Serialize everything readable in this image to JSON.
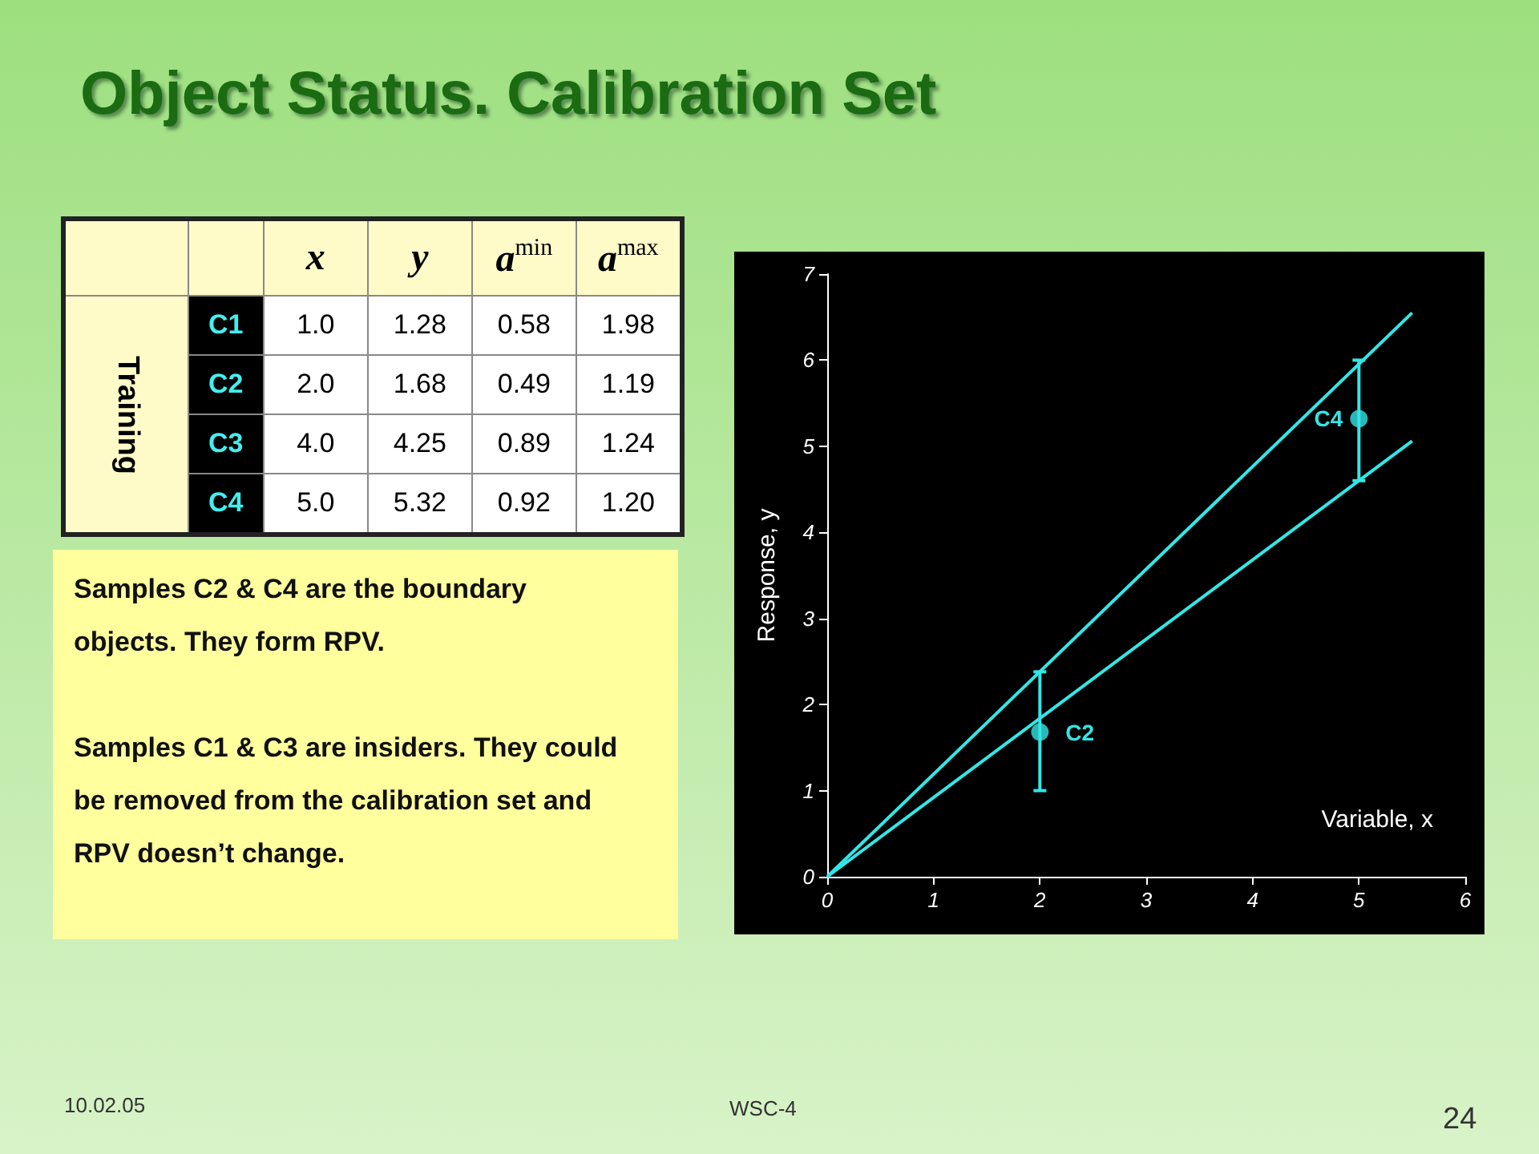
{
  "chart_data": [
    {
      "type": "other",
      "title": "Object Status. Calibration Set",
      "ylabel": "Training",
      "categories": [
        "x",
        "y",
        "a$^{min}$",
        "a$^{max}$"
      ],
      "y_categories": [
        "C1",
        "C2",
        "C3",
        "C4"
      ],
      "cell_labels": [
        [
          "1.0",
          "1.28",
          "0.58",
          "1.98"
        ],
        [
          "2.0",
          "1.68",
          "0.49",
          "1.19"
        ],
        [
          "4.0",
          "4.25",
          "0.89",
          "1.24"
        ],
        [
          "5.0",
          "5.32",
          "0.92",
          "1.20"
        ]
      ]
    },
    {
      "type": "other",
      "annotations": [
        "Samples C2 & C4 are the boundary objects. They form RPV.",
        "Samples C1 & C3 are insiders. They could be removed from the calibration set and RPV doesn’t change."
      ]
    },
    {
      "type": "scatter",
      "xlabel": "Variable, x",
      "ylabel": "Response, y",
      "xlim": [
        0,
        6
      ],
      "xticks": [
        0,
        1,
        2,
        3,
        4,
        5,
        6
      ],
      "ylim": [
        0,
        7
      ],
      "yticks": [
        0,
        1,
        2,
        3,
        4,
        5,
        6,
        7
      ],
      "grid": false,
      "line_style": "solid",
      "series": [
        {
          "type": "line",
          "color": "#33e6e6",
          "marker": "none",
          "x": [
            0,
            5.5
          ],
          "values": [
            0,
            6.55
          ]
        },
        {
          "type": "line",
          "color": "#33e6e6",
          "marker": "none",
          "x": [
            0,
            5.5
          ],
          "values": [
            0,
            5.06
          ]
        },
        {
          "type": "scatter",
          "color": "#33e6e6",
          "marker": "circle",
          "x": [
            2,
            5
          ],
          "values": [
            1.68,
            5.32
          ],
          "errors": [
            [
              1.0,
              2.38
            ],
            [
              4.6,
              6.0
            ]
          ]
        }
      ],
      "annotations": [
        {
          "text": "C2",
          "x": 2,
          "y": 1.68
        },
        {
          "text": "C4",
          "x": 5,
          "y": 5.32
        }
      ]
    },
    {
      "type": "other",
      "annotations": [
        "10.02.05",
        "WSC-4",
        "24"
      ]
    }
  ]
}
